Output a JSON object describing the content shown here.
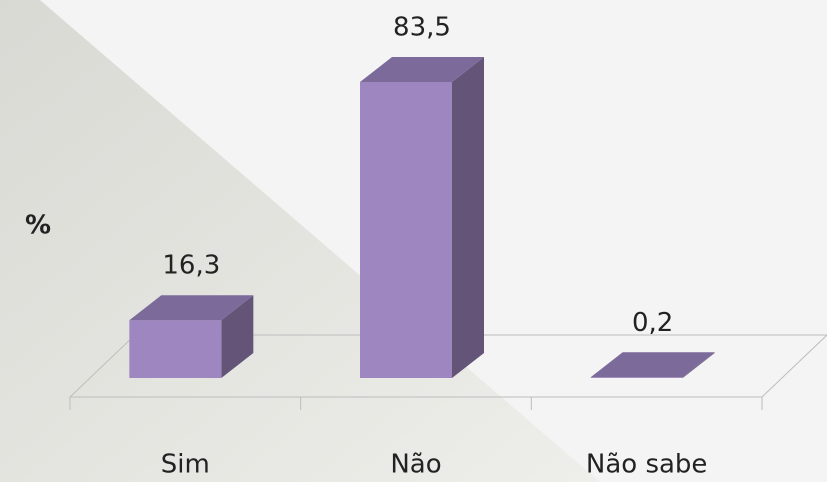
{
  "chart_data": {
    "type": "bar3d",
    "y_label": "%",
    "categories": [
      "Sim",
      "Não",
      "Não sabe"
    ],
    "values": [
      16.3,
      83.5,
      0.2
    ],
    "value_labels": [
      "16,3",
      "83,5",
      "0,2"
    ],
    "color": "#9e86c0"
  }
}
